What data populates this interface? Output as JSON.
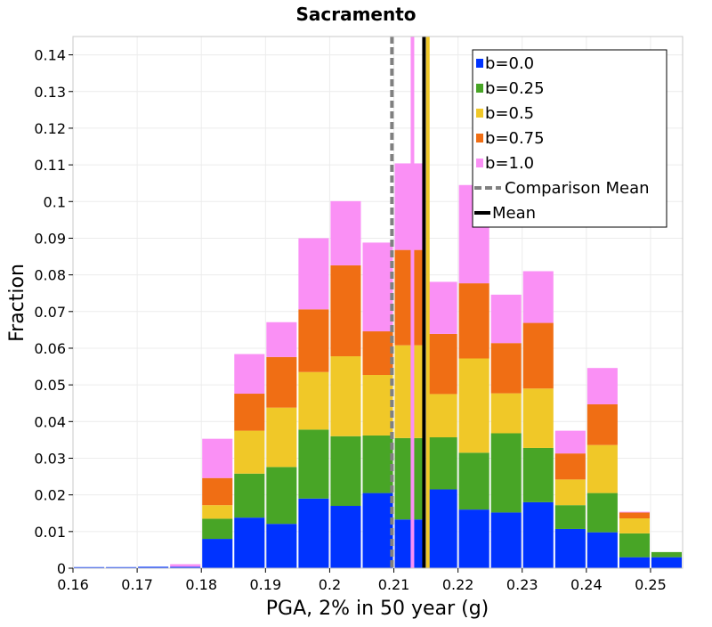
{
  "chart_data": {
    "type": "bar",
    "stacked": true,
    "title": "Sacramento",
    "xlabel": "PGA, 2% in 50 year (g)",
    "ylabel": "Fraction",
    "xlim": [
      0.16,
      0.255
    ],
    "ylim": [
      0,
      0.145
    ],
    "grid": true,
    "legend_position": "top-right",
    "bin_width": 0.005,
    "x": [
      0.1625,
      0.1675,
      0.1725,
      0.1775,
      0.1825,
      0.1875,
      0.1925,
      0.1975,
      0.2025,
      0.2075,
      0.2125,
      0.2175,
      0.2225,
      0.2275,
      0.2325,
      0.2375,
      0.2425,
      0.2475,
      0.2525
    ],
    "series": [
      {
        "name": "b=0.0",
        "color": "#0033ff",
        "values": [
          0.0003,
          0.0003,
          0.0004,
          0.0004,
          0.008,
          0.0138,
          0.0121,
          0.019,
          0.017,
          0.0205,
          0.0133,
          0.0215,
          0.016,
          0.0152,
          0.018,
          0.0107,
          0.0098,
          0.003,
          0.003
        ]
      },
      {
        "name": "b=0.25",
        "color": "#48a526",
        "values": [
          0.0,
          0.0,
          0.0,
          0.0,
          0.0055,
          0.012,
          0.0155,
          0.0188,
          0.019,
          0.0157,
          0.0222,
          0.0142,
          0.0155,
          0.0216,
          0.0148,
          0.0065,
          0.0107,
          0.0065,
          0.0014
        ]
      },
      {
        "name": "b=0.5",
        "color": "#f0c828",
        "values": [
          0.0,
          0.0,
          0.0,
          0.0,
          0.0037,
          0.0117,
          0.0162,
          0.0157,
          0.0218,
          0.0165,
          0.0253,
          0.0118,
          0.0257,
          0.0109,
          0.0162,
          0.007,
          0.0131,
          0.0041,
          0.0
        ]
      },
      {
        "name": "b=0.75",
        "color": "#f06e14",
        "values": [
          0.0,
          0.0,
          0.0,
          0.0,
          0.0074,
          0.0101,
          0.0138,
          0.0171,
          0.0248,
          0.0119,
          0.026,
          0.0164,
          0.0205,
          0.0137,
          0.0179,
          0.0071,
          0.0111,
          0.0016,
          0.0
        ]
      },
      {
        "name": "b=1.0",
        "color": "#fa90f5",
        "values": [
          0.0,
          0.0,
          0.0,
          0.0007,
          0.0107,
          0.0108,
          0.0095,
          0.0194,
          0.0175,
          0.0242,
          0.0236,
          0.0142,
          0.0268,
          0.0132,
          0.0141,
          0.0062,
          0.0099,
          0.0002,
          0.0
        ]
      }
    ],
    "reference_lines": [
      {
        "name": "Comparison Mean",
        "x": 0.2097,
        "color": "#808080",
        "style": "dashed"
      },
      {
        "name": "Mean",
        "x": 0.2147,
        "color": "#000000",
        "style": "solid"
      }
    ],
    "series_mean_lines": [
      {
        "series": "b=0.5",
        "x": 0.2153
      },
      {
        "series": "b=1.0",
        "x": 0.2129
      }
    ],
    "xticks": [
      "0.16",
      "0.17",
      "0.18",
      "0.19",
      "0.2",
      "0.21",
      "0.22",
      "0.23",
      "0.24",
      "0.25"
    ],
    "yticks": [
      "0",
      "0.01",
      "0.02",
      "0.03",
      "0.04",
      "0.05",
      "0.06",
      "0.07",
      "0.08",
      "0.09",
      "0.1",
      "0.11",
      "0.12",
      "0.13",
      "0.14"
    ]
  }
}
